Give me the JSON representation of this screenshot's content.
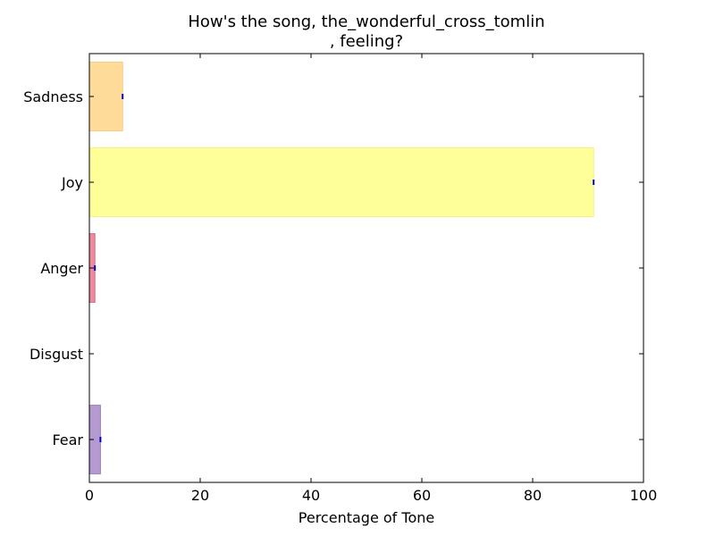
{
  "chart_data": {
    "type": "bar",
    "orientation": "horizontal",
    "title": "How's the song, the_wonderful_cross_tomlin\n, feeling?",
    "xlabel": "Percentage of Tone",
    "ylabel": "",
    "xlim": [
      0,
      100
    ],
    "xticks": [
      0,
      20,
      40,
      60,
      80,
      100
    ],
    "grid": false,
    "categories": [
      "Fear",
      "Disgust",
      "Anger",
      "Joy",
      "Sadness"
    ],
    "values": [
      2,
      0,
      1,
      91,
      6
    ],
    "colors": [
      "#b49ad0",
      "#85c46a",
      "#ee8a9e",
      "#ffff99",
      "#ffdb99"
    ],
    "edge_colors": [
      "#9a7cbf",
      "#6aa84f",
      "#d9677e",
      "#f2f27a",
      "#f7c97a"
    ]
  }
}
